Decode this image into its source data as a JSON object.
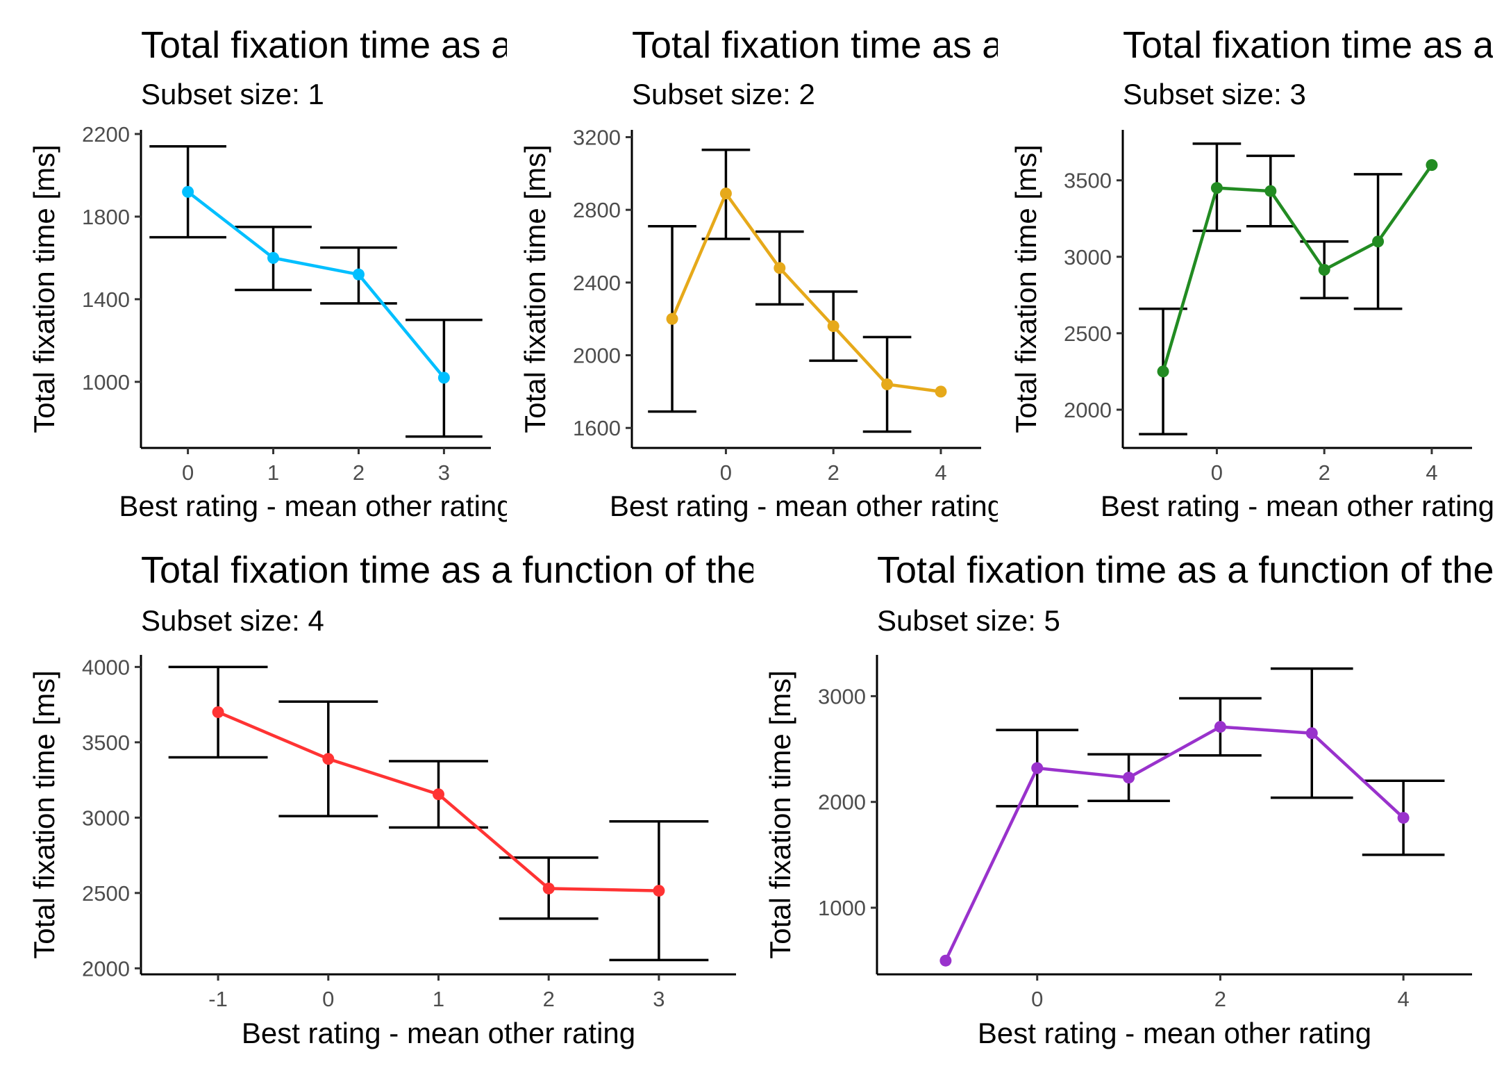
{
  "chart_data": [
    {
      "type": "line",
      "title": "Total fixation time as a function of the",
      "subtitle": "Subset size: 1",
      "xlabel": "Best rating - mean other rating",
      "ylabel": "Total fixation time [ms]",
      "color": "#00BFFF",
      "xlim": [
        -0.55,
        3.55
      ],
      "ylim": [
        680,
        2220
      ],
      "xticks": [
        0,
        1,
        2,
        3
      ],
      "xtick_labels": [
        "0",
        "1",
        "2",
        "3"
      ],
      "yticks": [
        1000,
        1400,
        1800,
        2200
      ],
      "ytick_labels": [
        "1000",
        "1400",
        "1800",
        "2200"
      ],
      "grid": false,
      "points": [
        {
          "x": 0,
          "y": 1920,
          "lo": 1700,
          "hi": 2140
        },
        {
          "x": 1,
          "y": 1600,
          "lo": 1445,
          "hi": 1750
        },
        {
          "x": 2,
          "y": 1520,
          "lo": 1380,
          "hi": 1650
        },
        {
          "x": 3,
          "y": 1020,
          "lo": 735,
          "hi": 1300
        }
      ]
    },
    {
      "type": "line",
      "title": "Total fixation time as a function of the",
      "subtitle": "Subset size: 2",
      "xlabel": "Best rating - mean other rating",
      "ylabel": "Total fixation time [ms]",
      "color": "#E6A91A",
      "xlim": [
        -1.75,
        4.75
      ],
      "ylim": [
        1490,
        3240
      ],
      "xticks": [
        0,
        2,
        4
      ],
      "xtick_labels": [
        "0",
        "2",
        "4"
      ],
      "yticks": [
        1600,
        2000,
        2400,
        2800,
        3200
      ],
      "ytick_labels": [
        "1600",
        "2000",
        "2400",
        "2800",
        "3200"
      ],
      "grid": false,
      "points": [
        {
          "x": -1,
          "y": 2200,
          "lo": 1690,
          "hi": 2710
        },
        {
          "x": 0,
          "y": 2890,
          "lo": 2640,
          "hi": 3130
        },
        {
          "x": 1,
          "y": 2480,
          "lo": 2280,
          "hi": 2680
        },
        {
          "x": 2,
          "y": 2160,
          "lo": 1970,
          "hi": 2350
        },
        {
          "x": 3,
          "y": 1840,
          "lo": 1580,
          "hi": 2100
        },
        {
          "x": 4,
          "y": 1800,
          "lo": null,
          "hi": null
        }
      ]
    },
    {
      "type": "line",
      "title": "Total fixation time as a function of the",
      "subtitle": "Subset size: 3",
      "xlabel": "Best rating - mean other rating",
      "ylabel": "Total fixation time [ms]",
      "color": "#228B22",
      "xlim": [
        -1.75,
        4.75
      ],
      "ylim": [
        1750,
        3830
      ],
      "xticks": [
        0,
        2,
        4
      ],
      "xtick_labels": [
        "0",
        "2",
        "4"
      ],
      "yticks": [
        2000,
        2500,
        3000,
        3500
      ],
      "ytick_labels": [
        "2000",
        "2500",
        "3000",
        "3500"
      ],
      "grid": false,
      "points": [
        {
          "x": -1,
          "y": 2250,
          "lo": 1840,
          "hi": 2660
        },
        {
          "x": 0,
          "y": 3450,
          "lo": 3170,
          "hi": 3740
        },
        {
          "x": 1,
          "y": 3430,
          "lo": 3200,
          "hi": 3660
        },
        {
          "x": 2,
          "y": 2915,
          "lo": 2730,
          "hi": 3100
        },
        {
          "x": 3,
          "y": 3100,
          "lo": 2660,
          "hi": 3540
        },
        {
          "x": 4,
          "y": 3600,
          "lo": null,
          "hi": null
        }
      ]
    },
    {
      "type": "line",
      "title": "Total fixation time as a function of the",
      "subtitle": "Subset size: 4",
      "xlabel": "Best rating - mean other rating",
      "ylabel": "Total fixation time [ms]",
      "color": "#FF3333",
      "xlim": [
        -1.7,
        3.7
      ],
      "ylim": [
        1960,
        4080
      ],
      "xticks": [
        -1,
        0,
        1,
        2,
        3
      ],
      "xtick_labels": [
        "-1",
        "0",
        "1",
        "2",
        "3"
      ],
      "yticks": [
        2000,
        2500,
        3000,
        3500,
        4000
      ],
      "ytick_labels": [
        "2000",
        "2500",
        "3000",
        "3500",
        "4000"
      ],
      "grid": false,
      "points": [
        {
          "x": -1,
          "y": 3700,
          "lo": 3400,
          "hi": 4000
        },
        {
          "x": 0,
          "y": 3390,
          "lo": 3010,
          "hi": 3770
        },
        {
          "x": 1,
          "y": 3155,
          "lo": 2935,
          "hi": 3375
        },
        {
          "x": 2,
          "y": 2530,
          "lo": 2330,
          "hi": 2735
        },
        {
          "x": 3,
          "y": 2515,
          "lo": 2055,
          "hi": 2975
        }
      ]
    },
    {
      "type": "line",
      "title": "Total fixation time as a function of the",
      "subtitle": "Subset size: 5",
      "xlabel": "Best rating - mean other rating",
      "ylabel": "Total fixation time [ms]",
      "color": "#9932CC",
      "xlim": [
        -1.75,
        4.75
      ],
      "ylim": [
        370,
        3390
      ],
      "xticks": [
        0,
        2,
        4
      ],
      "xtick_labels": [
        "0",
        "2",
        "4"
      ],
      "yticks": [
        1000,
        2000,
        3000
      ],
      "ytick_labels": [
        "1000",
        "2000",
        "3000"
      ],
      "grid": false,
      "points": [
        {
          "x": -1,
          "y": 500,
          "lo": null,
          "hi": null
        },
        {
          "x": 0,
          "y": 2320,
          "lo": 1960,
          "hi": 2680
        },
        {
          "x": 1,
          "y": 2230,
          "lo": 2010,
          "hi": 2450
        },
        {
          "x": 2,
          "y": 2710,
          "lo": 2440,
          "hi": 2980
        },
        {
          "x": 3,
          "y": 2650,
          "lo": 2040,
          "hi": 3260
        },
        {
          "x": 4,
          "y": 1850,
          "lo": 1500,
          "hi": 2200
        }
      ]
    }
  ]
}
